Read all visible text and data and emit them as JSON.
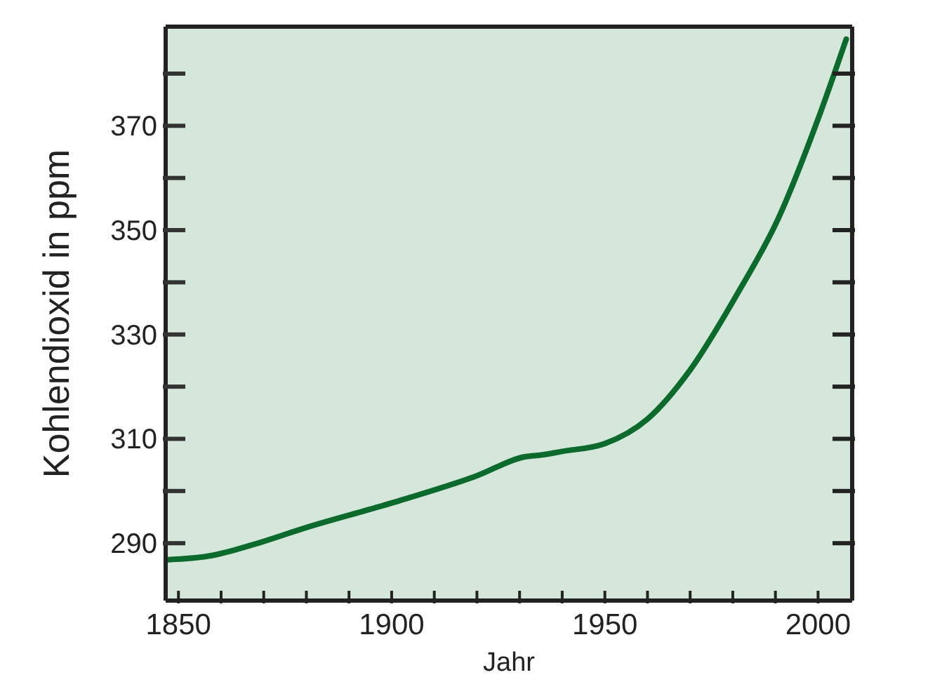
{
  "chart_data": {
    "type": "line",
    "xlabel": "Jahr",
    "ylabel": "Kohlendioxid in ppm",
    "x": [
      1847,
      1857.6,
      1867,
      1880,
      1900,
      1919.6,
      1931.5,
      1935,
      1940,
      1950,
      1960,
      1970,
      1981,
      1990.6,
      2000,
      2006.6
    ],
    "series": [
      {
        "color": "#0b6a2c",
        "values": [
          286.8,
          287.6,
          289.6,
          293,
          297.7,
          302.8,
          306.6,
          306.9,
          307.6,
          309.1,
          313.8,
          323.2,
          337.7,
          352.1,
          371.3,
          386.6
        ]
      }
    ],
    "xlim": [
      1847,
      2008
    ],
    "xticks": [
      1850,
      {
        "value": 1860,
        "label": null
      },
      {
        "value": 1870,
        "label": null
      },
      {
        "value": 1880,
        "label": null
      },
      {
        "value": 1890,
        "label": null
      },
      1900,
      {
        "value": 1910,
        "label": null
      },
      {
        "value": 1920,
        "label": null
      },
      {
        "value": 1930,
        "label": null
      },
      {
        "value": 1940,
        "label": null
      },
      1950,
      {
        "value": 1960,
        "label": null
      },
      {
        "value": 1970,
        "label": null
      },
      {
        "value": 1980,
        "label": null
      },
      {
        "value": 1990,
        "label": null
      },
      2000
    ],
    "ylim": [
      279,
      389
    ],
    "yticks": [
      290,
      {
        "value": 300,
        "label": null
      },
      310,
      {
        "value": 320,
        "label": null
      },
      330,
      {
        "value": 340,
        "label": null
      },
      350,
      {
        "value": 360,
        "label": null
      },
      370,
      {
        "value": 380,
        "label": null
      }
    ],
    "grid": false,
    "legend": false,
    "marker": "none",
    "line_style": "solid"
  }
}
